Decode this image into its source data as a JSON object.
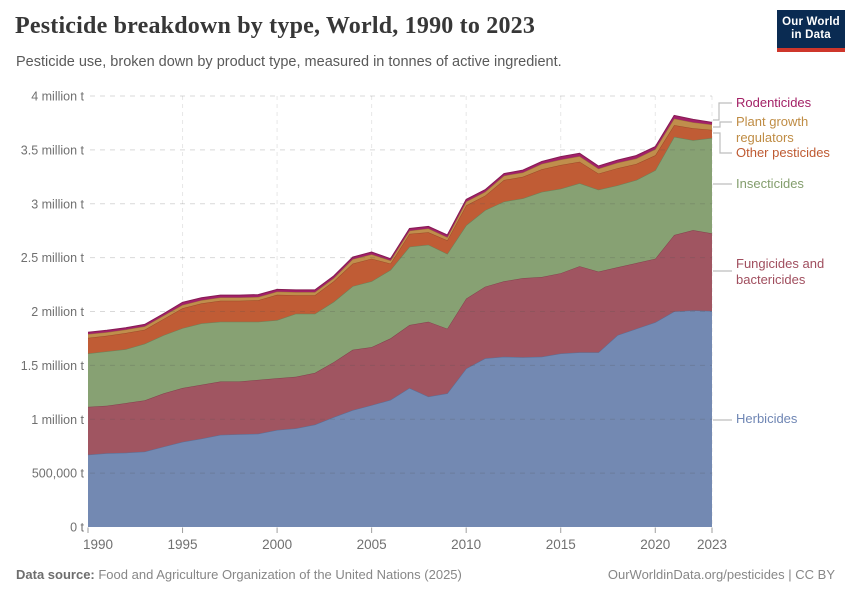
{
  "header": {
    "title": "Pesticide breakdown by type, World, 1990 to 2023",
    "subtitle": "Pesticide use, broken down by product type, measured in tonnes of active ingredient.",
    "logo": {
      "line1": "Our World",
      "line2": "in Data",
      "navy": "#0A2B52",
      "red": "#CE362B"
    }
  },
  "footer": {
    "source_label": "Data source:",
    "source_text": " Food and Agriculture Organization of the United Nations (2025)",
    "credit": "OurWorldinData.org/pesticides | CC BY"
  },
  "legend": {
    "items": [
      {
        "label": "Rodenticides",
        "color": "#A32166"
      },
      {
        "label": "Plant growth regulators",
        "color": "#BF8C44"
      },
      {
        "label": "Other pesticides",
        "color": "#BE5A32"
      },
      {
        "label": "Insecticides",
        "color": "#839D6C"
      },
      {
        "label": "Fungicides and bactericides",
        "color": "#A04E5E"
      },
      {
        "label": "Herbicides",
        "color": "#6F86B4"
      }
    ]
  },
  "chart_data": {
    "type": "area",
    "stacked": true,
    "title": "Pesticide breakdown by type, World, 1990 to 2023",
    "ylabel": "tonnes of active ingredient",
    "unit": "t",
    "ylim": [
      0,
      4000000
    ],
    "grid": true,
    "legend_position": "right",
    "x": [
      1990,
      1991,
      1992,
      1993,
      1994,
      1995,
      1996,
      1997,
      1998,
      1999,
      2000,
      2001,
      2002,
      2003,
      2004,
      2005,
      2006,
      2007,
      2008,
      2009,
      2010,
      2011,
      2012,
      2013,
      2014,
      2015,
      2016,
      2017,
      2018,
      2019,
      2020,
      2021,
      2022,
      2023
    ],
    "x_ticks": [
      1990,
      1995,
      2000,
      2005,
      2010,
      2015,
      2020,
      2023
    ],
    "y_ticks": [
      {
        "v": 0,
        "label": "0 t"
      },
      {
        "v": 500000,
        "label": "500,000 t"
      },
      {
        "v": 1000000,
        "label": "1 million t"
      },
      {
        "v": 1500000,
        "label": "1.5 million t"
      },
      {
        "v": 2000000,
        "label": "2 million t"
      },
      {
        "v": 2500000,
        "label": "2.5 million t"
      },
      {
        "v": 3000000,
        "label": "3 million t"
      },
      {
        "v": 3500000,
        "label": "3.5 million t"
      },
      {
        "v": 4000000,
        "label": "4 million t"
      }
    ],
    "series": [
      {
        "name": "Herbicides",
        "color": "#6F86B4",
        "fill": "#7389B2",
        "values": [
          670000,
          685000,
          690000,
          700000,
          745000,
          790000,
          820000,
          855000,
          860000,
          865000,
          900000,
          915000,
          950000,
          1020000,
          1085000,
          1130000,
          1180000,
          1290000,
          1210000,
          1240000,
          1470000,
          1565000,
          1580000,
          1575000,
          1580000,
          1610000,
          1620000,
          1620000,
          1780000,
          1840000,
          1900000,
          2000000,
          2010000,
          2005000
        ]
      },
      {
        "name": "Fungicides and bactericides",
        "color": "#A04E5E",
        "fill": "#A05561",
        "values": [
          445000,
          440000,
          460000,
          475000,
          495000,
          500000,
          500000,
          495000,
          490000,
          500000,
          480000,
          480000,
          480000,
          510000,
          560000,
          540000,
          570000,
          585000,
          695000,
          600000,
          650000,
          665000,
          700000,
          735000,
          740000,
          745000,
          800000,
          750000,
          630000,
          610000,
          590000,
          710000,
          745000,
          720000
        ]
      },
      {
        "name": "Insecticides",
        "color": "#839D6C",
        "fill": "#87A173",
        "values": [
          495000,
          505000,
          500000,
          525000,
          540000,
          555000,
          570000,
          555000,
          555000,
          540000,
          540000,
          585000,
          550000,
          560000,
          590000,
          610000,
          635000,
          725000,
          715000,
          695000,
          680000,
          710000,
          740000,
          740000,
          790000,
          785000,
          770000,
          760000,
          760000,
          770000,
          820000,
          910000,
          835000,
          885000
        ]
      },
      {
        "name": "Other pesticides",
        "color": "#BE5A32",
        "fill": "#C05C35",
        "values": [
          145000,
          145000,
          150000,
          130000,
          150000,
          185000,
          185000,
          195000,
          195000,
          200000,
          235000,
          170000,
          170000,
          190000,
          210000,
          210000,
          60000,
          120000,
          115000,
          125000,
          185000,
          135000,
          200000,
          200000,
          210000,
          220000,
          200000,
          150000,
          160000,
          150000,
          140000,
          110000,
          110000,
          75000
        ]
      },
      {
        "name": "Plant growth regulators",
        "color": "#BF8C44",
        "fill": "#C08E4C",
        "values": [
          35000,
          33000,
          32000,
          32000,
          32000,
          30000,
          30000,
          30000,
          30000,
          30000,
          30000,
          30000,
          30000,
          30000,
          40000,
          40000,
          28000,
          30000,
          35000,
          30000,
          35000,
          35000,
          40000,
          40000,
          50000,
          50000,
          50000,
          45000,
          50000,
          50000,
          55000,
          60000,
          55000,
          50000
        ]
      },
      {
        "name": "Rodenticides",
        "color": "#A32166",
        "fill": "#A32069",
        "values": [
          18000,
          18000,
          18000,
          18000,
          18000,
          25000,
          22000,
          22000,
          22000,
          22000,
          20000,
          20000,
          20000,
          20000,
          20000,
          22000,
          17000,
          20000,
          20000,
          20000,
          20000,
          20000,
          20000,
          22000,
          22000,
          28000,
          28000,
          25000,
          25000,
          28000,
          25000,
          30000,
          28000,
          20000
        ]
      }
    ]
  }
}
